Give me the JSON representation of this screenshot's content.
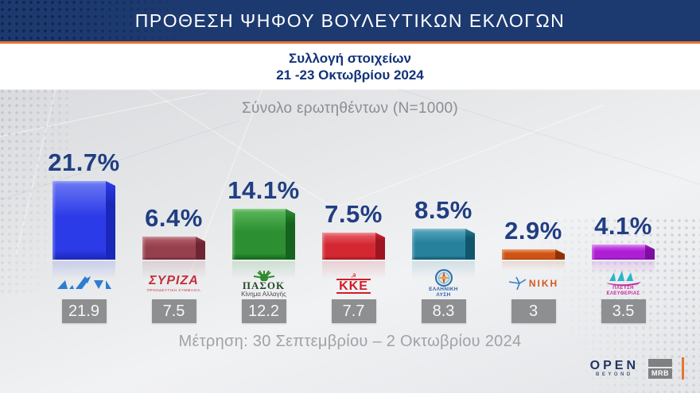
{
  "header": {
    "title": "ΠΡΟΘΕΣΗ ΨΗΦΟΥ ΒΟΥΛΕΥΤΙΚΩΝ ΕΚΛΟΓΩΝ",
    "subtitle_line1": "Συλλογή στοιχείων",
    "subtitle_line2": "21 -23 Οκτωβρίου 2024"
  },
  "sample_note": "Σύνολο ερωτηθέντων (N=1000)",
  "footer_note": "Μέτρηση: 30 Σεπτεμβρίου – 2 Οκτωβρίου 2024",
  "branding": {
    "open": "OPEN",
    "beyond": "BEYOND",
    "mrb": "MRB"
  },
  "colors": {
    "header_bg": "#1d3a70",
    "accent_orange": "#e87430",
    "percent_text": "#203e82",
    "prev_box_bg": "#8d8f90"
  },
  "chart_data": {
    "type": "bar",
    "title": "ΠΡΟΘΕΣΗ ΨΗΦΟΥ ΒΟΥΛΕΥΤΙΚΩΝ ΕΚΛΟΓΩΝ",
    "subtitle": "Συλλογή στοιχείων 21-23 Οκτωβρίου 2024",
    "sample": "N=1000",
    "unit": "%",
    "categories": [
      "ΝΔ",
      "ΣΥΡΙΖΑ",
      "ΠΑΣΟΚ",
      "ΚΚΕ",
      "ΕΛΛΗΝΙΚΗ ΛΥΣΗ",
      "ΝΙΚΗ",
      "ΠΛΕΥΣΗ ΕΛΕΥΘΕΡΙΑΣ"
    ],
    "series": [
      {
        "name": "Συλλογή στοιχείων 21-23 Οκτωβρίου 2024",
        "values": [
          21.7,
          6.4,
          14.1,
          7.5,
          8.5,
          2.9,
          4.1
        ]
      },
      {
        "name": "Μέτρηση 30 Σεπτεμβρίου – 2 Οκτωβρίου 2024",
        "values": [
          21.9,
          7.5,
          12.2,
          7.7,
          8.3,
          3,
          3.5
        ]
      }
    ],
    "bars": [
      {
        "party": "ΝΔ",
        "label": "21.7%",
        "value": 21.7,
        "previous": "21.9",
        "colors": {
          "light": "#6c79f2",
          "base": "#2c3be8",
          "dark": "#1b27b8"
        }
      },
      {
        "party": "ΣΥΡΙΖΑ",
        "label": "6.4%",
        "value": 6.4,
        "previous": "7.5",
        "colors": {
          "light": "#b5656f",
          "base": "#963f4d",
          "dark": "#6e2433"
        },
        "logo": {
          "title": "ΣΥΡΙΖΑ",
          "subtitle": "ΠΡΟΟΔΕΥΤΙΚΗ ΣΥΜΜΑΧΙΑ"
        }
      },
      {
        "party": "ΠΑΣΟΚ",
        "label": "14.1%",
        "value": 14.1,
        "previous": "12.2",
        "colors": {
          "light": "#5cb85c",
          "base": "#2c8f31",
          "dark": "#15631d"
        },
        "logo": {
          "title": "ΠΑΣΟΚ",
          "subtitle": "Κίνημα Αλλαγής"
        }
      },
      {
        "party": "ΚΚΕ",
        "label": "7.5%",
        "value": 7.5,
        "previous": "7.7",
        "colors": {
          "light": "#e8626c",
          "base": "#d32832",
          "dark": "#9e1420"
        },
        "logo": {
          "title": "ΚΚΕ",
          "emblem": "☭"
        }
      },
      {
        "party": "ΕΛΛΗΝΙΚΗ ΛΥΣΗ",
        "label": "8.5%",
        "value": 8.5,
        "previous": "8.3",
        "colors": {
          "light": "#57a7bd",
          "base": "#27809c",
          "dark": "#0f566b"
        },
        "logo": {
          "title": "ΕΛΛΗΝΙΚΗ",
          "subtitle": "ΛΥΣΗ"
        }
      },
      {
        "party": "ΝΙΚΗ",
        "label": "2.9%",
        "value": 2.9,
        "previous": "3",
        "colors": {
          "light": "#e2763c",
          "base": "#cf5312",
          "dark": "#8f3305"
        },
        "logo": {
          "title": "ΝΙΚΗ"
        }
      },
      {
        "party": "ΠΛΕΥΣΗ ΕΛΕΥΘΕΡΙΑΣ",
        "label": "4.1%",
        "value": 4.1,
        "previous": "3.5",
        "colors": {
          "light": "#ce62ea",
          "base": "#ae1fd4",
          "dark": "#7d0fa0"
        },
        "logo": {
          "title": "ΠΛΕΥΣΗ",
          "subtitle": "ΕΛΕΥΘΕΡΙΑΣ"
        }
      }
    ],
    "xlabel": "",
    "ylabel": "",
    "ylim": [
      0,
      24
    ],
    "grid": false,
    "legend_position": "none"
  }
}
